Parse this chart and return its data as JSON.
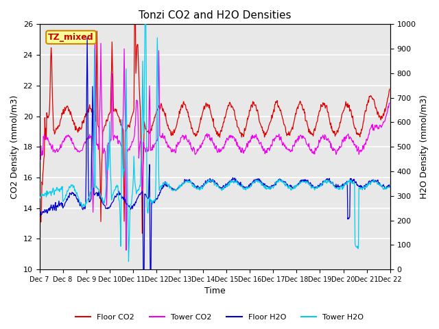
{
  "title": "Tonzi CO2 and H2O Densities",
  "xlabel": "Time",
  "ylabel_left": "CO2 Density (mmol/m3)",
  "ylabel_right": "H2O Density (mmol/m3)",
  "ylim_left": [
    10,
    26
  ],
  "ylim_right": [
    0,
    1000
  ],
  "yticks_left": [
    10,
    12,
    14,
    16,
    18,
    20,
    22,
    24,
    26
  ],
  "yticks_right": [
    0,
    100,
    200,
    300,
    400,
    500,
    600,
    700,
    800,
    900,
    1000
  ],
  "annotation_text": "TZ_mixed",
  "annotation_color": "#cc0000",
  "annotation_bg": "#ffff99",
  "annotation_border": "#cc8800",
  "colors": {
    "floor_co2": "#dd0000",
    "tower_co2": "#ee00ee",
    "floor_h2o": "#0000cc",
    "tower_h2o": "#00ccee"
  },
  "legend_labels": [
    "Floor CO2",
    "Tower CO2",
    "Floor H2O",
    "Tower H2O"
  ],
  "n_days": 15,
  "n_points_per_day": 48,
  "background_color": "#e8e8e8",
  "grid_color": "#ffffff"
}
